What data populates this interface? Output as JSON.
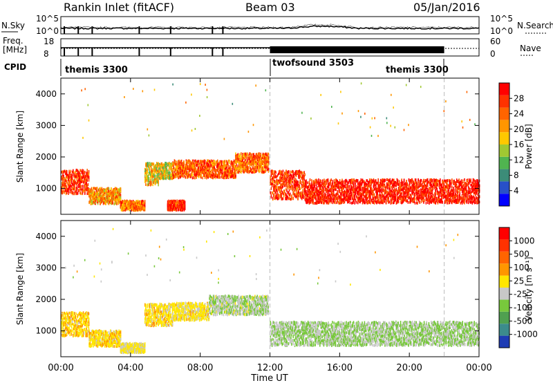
{
  "header": {
    "title": "Rankin Inlet (fitACF)",
    "beam": "Beam 03",
    "date": "05/Jan/2016"
  },
  "sky_panel": {
    "left_label": "N.Sky",
    "right_label": "N.Search",
    "left_ticks": [
      "10^5",
      "10^0"
    ],
    "right_ticks": [
      "10^5",
      "10^0"
    ]
  },
  "freq_panel": {
    "left_label_1": "Freq.",
    "left_label_2": "[MHz]",
    "right_label": "Nave",
    "left_ticks": [
      "18",
      "8"
    ],
    "right_ticks": [
      "60",
      "0"
    ]
  },
  "cpid": {
    "label": "CPID",
    "segments": [
      {
        "name": "themis 3300",
        "start_h": 0,
        "end_h": 12
      },
      {
        "name": "twofsound 3503",
        "start_h": 12,
        "end_h": 22
      },
      {
        "name": "themis 3300",
        "start_h": 22,
        "end_h": 24
      }
    ]
  },
  "chart_data": [
    {
      "type": "heatmap",
      "variable": "Power",
      "ylabel": "Slant Range [km]",
      "xlabel": "Time UT",
      "x_ticks": [
        "00:00",
        "04:00",
        "08:00",
        "12:00",
        "16:00",
        "20:00",
        "00:00"
      ],
      "xlim_hours": [
        0,
        24
      ],
      "y_ticks": [
        1000,
        2000,
        3000,
        4000
      ],
      "ylim": [
        180,
        4500
      ],
      "colorbar": {
        "label": "Power [dB]",
        "ticks": [
          "4",
          "8",
          "12",
          "16",
          "20",
          "24",
          "28"
        ],
        "range": [
          0,
          30
        ],
        "colors": [
          "#0000ff",
          "#2850c8",
          "#3c8c78",
          "#50b450",
          "#a0c832",
          "#ffc800",
          "#ff9600",
          "#ff6400",
          "#ff3200",
          "#ff0000"
        ]
      },
      "echo_bands": [
        {
          "start_h": 0.0,
          "end_h": 1.6,
          "center_km": 1250,
          "width_km": 750,
          "value_db": 26
        },
        {
          "start_h": 1.6,
          "end_h": 3.4,
          "center_km": 800,
          "width_km": 500,
          "value_db": 20
        },
        {
          "start_h": 3.4,
          "end_h": 4.8,
          "center_km": 500,
          "width_km": 300,
          "value_db": 22
        },
        {
          "start_h": 4.8,
          "end_h": 5.6,
          "center_km": 1500,
          "width_km": 700,
          "value_db": 16
        },
        {
          "start_h": 5.6,
          "end_h": 6.4,
          "center_km": 1600,
          "width_km": 500,
          "value_db": 16
        },
        {
          "start_h": 6.1,
          "end_h": 7.1,
          "center_km": 500,
          "width_km": 300,
          "value_db": 27
        },
        {
          "start_h": 6.4,
          "end_h": 10.0,
          "center_km": 1650,
          "width_km": 550,
          "value_db": 24
        },
        {
          "start_h": 10.0,
          "end_h": 11.9,
          "center_km": 1850,
          "width_km": 600,
          "value_db": 22
        },
        {
          "start_h": 12.0,
          "end_h": 14.0,
          "center_km": 1150,
          "width_km": 900,
          "value_db": 26
        },
        {
          "start_h": 14.0,
          "end_h": 24.0,
          "center_km": 950,
          "width_km": 750,
          "value_db": 28
        }
      ]
    },
    {
      "type": "heatmap",
      "variable": "Velocity",
      "ylabel": "Slant Range [km]",
      "xlabel": "Time UT",
      "x_ticks": [
        "00:00",
        "04:00",
        "08:00",
        "12:00",
        "16:00",
        "20:00",
        "00:00"
      ],
      "xlim_hours": [
        0,
        24
      ],
      "y_ticks": [
        1000,
        2000,
        3000,
        4000
      ],
      "ylim": [
        180,
        4500
      ],
      "colorbar": {
        "label": "Velocity [m s⁻¹]",
        "ticks": [
          "1000",
          "500",
          "100",
          "25",
          "-25",
          "-100",
          "-500",
          "-1000"
        ],
        "range": [
          -1000,
          1000
        ],
        "colors": [
          "#1e3cb4",
          "#3c8c8c",
          "#50a050",
          "#78c83c",
          "#c8c8c8",
          "#ffe600",
          "#ff9600",
          "#ff6400",
          "#ff3200",
          "#ff0000"
        ]
      },
      "echo_bands": [
        {
          "start_h": 0.0,
          "end_h": 1.6,
          "center_km": 1250,
          "width_km": 750,
          "value_ms": 150
        },
        {
          "start_h": 1.6,
          "end_h": 3.4,
          "center_km": 800,
          "width_km": 500,
          "value_ms": 120
        },
        {
          "start_h": 3.4,
          "end_h": 4.8,
          "center_km": 500,
          "width_km": 300,
          "value_ms": 40
        },
        {
          "start_h": 4.8,
          "end_h": 6.4,
          "center_km": 1550,
          "width_km": 700,
          "value_ms": 100
        },
        {
          "start_h": 6.4,
          "end_h": 8.5,
          "center_km": 1650,
          "width_km": 550,
          "value_ms": 80
        },
        {
          "start_h": 8.5,
          "end_h": 11.9,
          "center_km": 1850,
          "width_km": 600,
          "value_ms": -150
        },
        {
          "start_h": 12.0,
          "end_h": 24.0,
          "center_km": 950,
          "width_km": 750,
          "value_ms": -200
        }
      ]
    }
  ]
}
